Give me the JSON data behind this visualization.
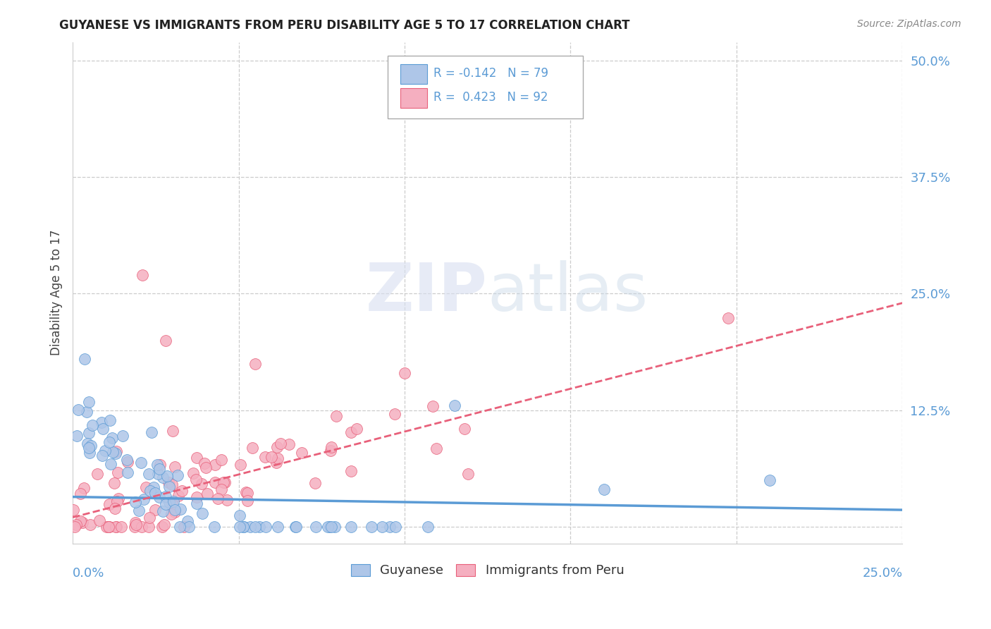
{
  "title": "GUYANESE VS IMMIGRANTS FROM PERU DISABILITY AGE 5 TO 17 CORRELATION CHART",
  "source": "Source: ZipAtlas.com",
  "ylabel": "Disability Age 5 to 17",
  "ytick_values": [
    0.0,
    0.125,
    0.25,
    0.375,
    0.5
  ],
  "ytick_labels": [
    "",
    "12.5%",
    "25.0%",
    "37.5%",
    "50.0%"
  ],
  "xlim": [
    0.0,
    0.25
  ],
  "ylim": [
    -0.018,
    0.52
  ],
  "guyanese_color": "#aec6e8",
  "peru_color": "#f5afc0",
  "guyanese_line_color": "#5b9bd5",
  "peru_line_color": "#e8607a",
  "background_color": "#ffffff",
  "guyanese_R": -0.142,
  "peru_R": 0.423,
  "guyanese_N": 79,
  "peru_N": 92,
  "guyanese_trend_x": [
    0.0,
    0.25
  ],
  "guyanese_trend_y": [
    0.032,
    0.018
  ],
  "peru_trend_x": [
    0.0,
    0.25
  ],
  "peru_trend_y": [
    0.01,
    0.24
  ]
}
